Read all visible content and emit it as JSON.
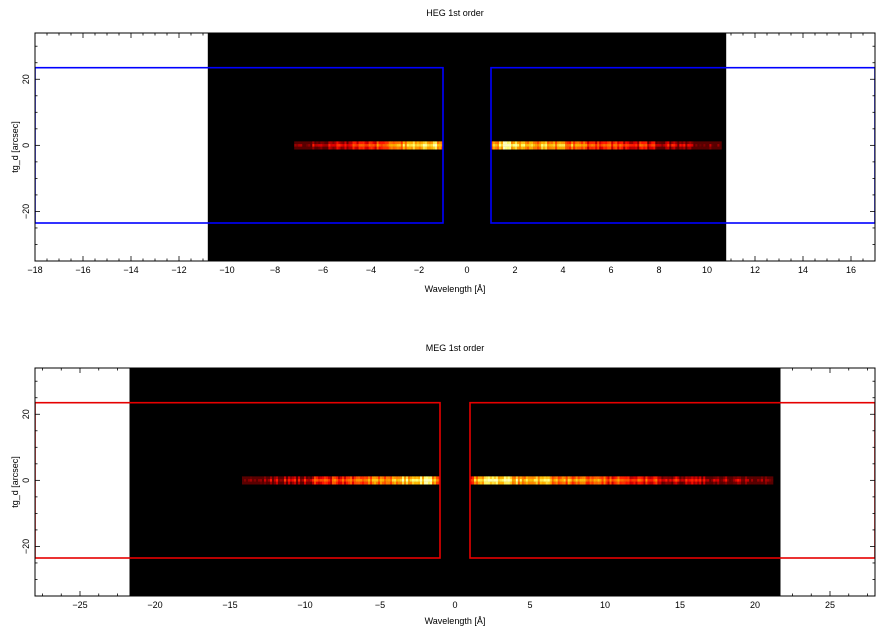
{
  "chart_data": [
    {
      "type": "heatmap",
      "title": "HEG 1st order",
      "xlabel": "Wavelength [Å]",
      "ylabel": "tg_d [arcsec]",
      "xlim": [
        -18,
        17
      ],
      "ylim": [
        -35,
        34
      ],
      "x_ticks": [
        -18,
        -16,
        -14,
        -12,
        -10,
        -8,
        -6,
        -4,
        -2,
        0,
        2,
        4,
        6,
        8,
        10,
        12,
        14,
        16
      ],
      "y_ticks": [
        -20,
        0,
        20
      ],
      "image_extent_x": [
        -10.8,
        10.8
      ],
      "image_extent_y": [
        -35,
        34
      ],
      "stripes": [
        {
          "x_start": -7.2,
          "x_end": -1.0,
          "y_center": 0,
          "half_width": 1.2
        },
        {
          "x_start": 1.0,
          "x_end": 10.6,
          "y_center": 0,
          "half_width": 1.2
        }
      ],
      "region_color": "#0000ff",
      "regions": [
        {
          "x_start": -18,
          "x_end": -1.0,
          "y_min": -23.5,
          "y_max": 23.5
        },
        {
          "x_start": 1.0,
          "x_end": 17,
          "y_min": -23.5,
          "y_max": 23.5
        }
      ]
    },
    {
      "type": "heatmap",
      "title": "MEG 1st order",
      "xlabel": "Wavelength [Å]",
      "ylabel": "tg_d [arcsec]",
      "xlim": [
        -28,
        28
      ],
      "ylim": [
        -35,
        34
      ],
      "x_ticks": [
        -25,
        -20,
        -15,
        -10,
        -5,
        0,
        5,
        10,
        15,
        20,
        25
      ],
      "y_ticks": [
        -20,
        0,
        20
      ],
      "image_extent_x": [
        -21.7,
        21.7
      ],
      "image_extent_y": [
        -35,
        34
      ],
      "stripes": [
        {
          "x_start": -14.2,
          "x_end": -1.0,
          "y_center": 0,
          "half_width": 1.2
        },
        {
          "x_start": 1.0,
          "x_end": 21.2,
          "y_center": 0,
          "half_width": 1.2
        }
      ],
      "region_color": "#e60000",
      "regions": [
        {
          "x_start": -28,
          "x_end": -1.0,
          "y_min": -23.5,
          "y_max": 23.5
        },
        {
          "x_start": 1.0,
          "x_end": 28,
          "y_min": -23.5,
          "y_max": 23.5
        }
      ]
    }
  ]
}
